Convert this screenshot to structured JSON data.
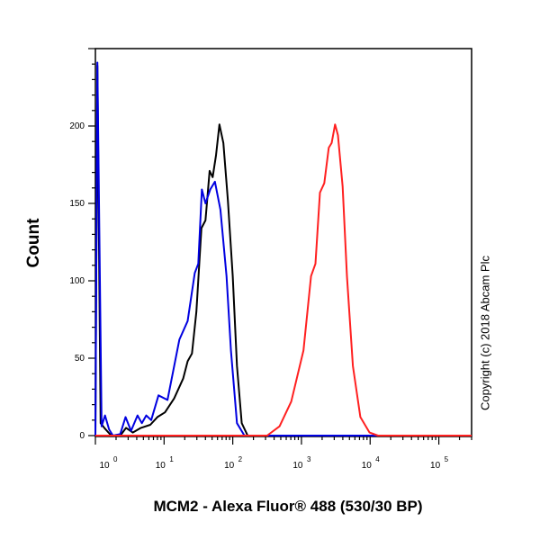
{
  "chart_data": {
    "type": "line",
    "title": "",
    "xlabel": "MCM2 - Alexa Fluor® 488 (530/30 BP)",
    "ylabel": "Count",
    "xscale": "log",
    "xlim": [
      1,
      300000
    ],
    "ylim": [
      0,
      250
    ],
    "grid": false,
    "legend": "none",
    "yticks": [
      0,
      50,
      100,
      150,
      200
    ],
    "xticks": [
      1,
      10,
      100,
      1000,
      10000,
      100000
    ],
    "xtick_labels": [
      {
        "base": "10",
        "exp": "0"
      },
      {
        "base": "10",
        "exp": "1"
      },
      {
        "base": "10",
        "exp": "2"
      },
      {
        "base": "10",
        "exp": "3"
      },
      {
        "base": "10",
        "exp": "4"
      },
      {
        "base": "10",
        "exp": "5"
      }
    ],
    "series": [
      {
        "color": "#000000",
        "x": [
          1.0,
          1.07,
          1.19,
          1.35,
          1.7,
          2.3,
          2.8,
          3.5,
          4.6,
          6.3,
          8,
          10.3,
          14,
          19,
          22,
          25.5,
          29.5,
          35,
          40,
          46,
          51,
          57,
          64,
          73,
          85,
          100,
          115,
          135,
          165,
          300000
        ],
        "y": [
          0,
          239,
          8,
          5,
          0,
          0,
          5,
          2,
          5,
          7,
          12,
          15,
          24,
          37,
          48,
          53,
          80,
          134,
          139,
          171,
          167,
          181,
          201,
          189,
          152,
          103,
          45,
          8,
          0,
          0
        ]
      },
      {
        "color": "#0000e0",
        "x": [
          1.0,
          1.07,
          1.23,
          1.38,
          1.58,
          1.8,
          2.3,
          2.75,
          3.3,
          4.1,
          4.75,
          5.5,
          6.5,
          8.3,
          11.2,
          16.7,
          22,
          28,
          31.5,
          35.5,
          40,
          47,
          55,
          66,
          81,
          94,
          115,
          148,
          300000
        ],
        "y": [
          0,
          241,
          6,
          13,
          4,
          0,
          1,
          12,
          3,
          13,
          8,
          13,
          10,
          26,
          23,
          62,
          74,
          105,
          111,
          159,
          150,
          159,
          164,
          146,
          103,
          55,
          8,
          0,
          0
        ]
      },
      {
        "color": "#ff2020",
        "x": [
          1,
          316,
          480,
          710,
          1070,
          1380,
          1600,
          1860,
          2150,
          2500,
          2750,
          3090,
          3400,
          3980,
          4600,
          5600,
          7200,
          9800,
          13000,
          300000
        ],
        "y": [
          0,
          0,
          6,
          22,
          55,
          103,
          111,
          157,
          163,
          186,
          189,
          201,
          194,
          161,
          103,
          45,
          12,
          2,
          0,
          0
        ]
      }
    ]
  },
  "copyright": "Copyright (c) 2018 Abcam Plc"
}
